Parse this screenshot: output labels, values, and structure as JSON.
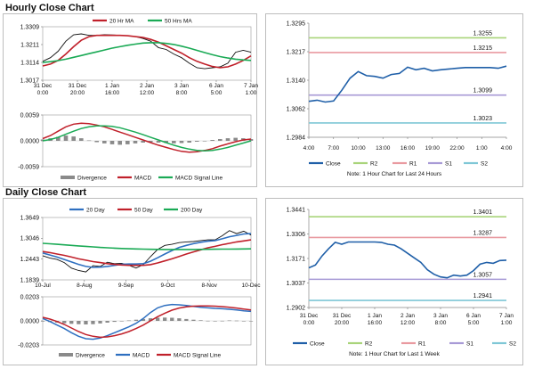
{
  "hourly": {
    "title": "Hourly Close Chart",
    "note": "Note: 1 Hour Chart for Last 24 Hours"
  },
  "daily": {
    "title": "Daily Close Chart",
    "note": "Note: 1 Hour Chart for Last 1 Week"
  },
  "colors": {
    "close": "#1f5fa8",
    "ma_red": "#c0202a",
    "ma_green": "#1aaa55",
    "ma_blue": "#2e6fc0",
    "r2": "#a9d47a",
    "r1": "#e99aa0",
    "s1": "#a89ad6",
    "s2": "#7fc7d6",
    "divergence": "#8a8a8a",
    "price": "#111111"
  },
  "chart_data": [
    {
      "id": "hourly_price",
      "type": "line",
      "legend": [
        "20 Hr MA",
        "50 Hrs MA"
      ],
      "yticks": [
        "1.3309",
        "1.3211",
        "1.3114",
        "1.3017"
      ],
      "ylim": [
        1.3017,
        1.3309
      ],
      "xticks": [
        "31 Dec\n0:00",
        "31 Dec\n20:00",
        "1 Jan\n16:00",
        "2 Jan\n12:00",
        "3 Jan\n8:00",
        "6 Jan\n5:00",
        "7 Jan\n1:00"
      ],
      "series": [
        {
          "name": "Close",
          "color_key": "price",
          "values": [
            1.312,
            1.314,
            1.3175,
            1.323,
            1.3265,
            1.327,
            1.3262,
            1.3262,
            1.3265,
            1.3264,
            1.3262,
            1.326,
            1.3255,
            1.3245,
            1.323,
            1.3195,
            1.3185,
            1.316,
            1.314,
            1.311,
            1.3085,
            1.308,
            1.3085,
            1.309,
            1.311,
            1.317,
            1.318,
            1.317
          ]
        },
        {
          "name": "20 Hr MA",
          "color_key": "ma_red",
          "values": [
            1.3095,
            1.3105,
            1.3125,
            1.316,
            1.32,
            1.3235,
            1.3255,
            1.3262,
            1.3262,
            1.3262,
            1.3262,
            1.326,
            1.3255,
            1.325,
            1.324,
            1.3225,
            1.3205,
            1.3185,
            1.3165,
            1.314,
            1.312,
            1.3105,
            1.3092,
            1.3085,
            1.309,
            1.3105,
            1.3125,
            1.315
          ]
        },
        {
          "name": "50 Hrs MA",
          "color_key": "ma_green",
          "values": [
            1.3114,
            1.3118,
            1.3124,
            1.3132,
            1.3142,
            1.3152,
            1.3162,
            1.3172,
            1.3182,
            1.3192,
            1.32,
            1.3208,
            1.3214,
            1.322,
            1.3222,
            1.3222,
            1.3218,
            1.3212,
            1.3203,
            1.3192,
            1.318,
            1.3168,
            1.3156,
            1.3146,
            1.3138,
            1.3132,
            1.3128,
            1.3125
          ]
        }
      ]
    },
    {
      "id": "hourly_macd",
      "type": "line",
      "legend": [
        "Divergence",
        "MACD",
        "MACD Signal Line"
      ],
      "yticks": [
        "0.0059",
        "0.0000",
        "-0.0059"
      ],
      "ylim": [
        -0.0059,
        0.0059
      ],
      "series": [
        {
          "name": "Divergence",
          "color_key": "divergence",
          "values": [
            0.0003,
            0.0006,
            0.0009,
            0.0012,
            0.001,
            0.0006,
            0.0001,
            -0.0003,
            -0.0006,
            -0.0008,
            -0.0009,
            -0.0008,
            -0.0006,
            -0.0004,
            -0.0003,
            -0.0004,
            -0.0005,
            -0.0006,
            -0.0005,
            -0.0004,
            -0.0002,
            0.0,
            0.0002,
            0.0004,
            0.0006,
            0.0007,
            0.0006,
            0.0004
          ]
        },
        {
          "name": "MACD",
          "color_key": "ma_red",
          "values": [
            0.0005,
            0.0012,
            0.0022,
            0.0032,
            0.0038,
            0.004,
            0.0039,
            0.0036,
            0.0032,
            0.0026,
            0.002,
            0.0014,
            0.0008,
            0.0002,
            -0.0004,
            -0.001,
            -0.0015,
            -0.002,
            -0.0024,
            -0.0026,
            -0.0025,
            -0.0022,
            -0.0018,
            -0.0012,
            -0.0007,
            -0.0002,
            0.0002,
            0.0004
          ]
        },
        {
          "name": "MACD Signal Line",
          "color_key": "ma_green",
          "values": [
            0.0,
            0.0003,
            0.0008,
            0.0015,
            0.0022,
            0.0028,
            0.0032,
            0.0034,
            0.0034,
            0.0033,
            0.003,
            0.0025,
            0.002,
            0.0014,
            0.0008,
            0.0002,
            -0.0004,
            -0.001,
            -0.0015,
            -0.0019,
            -0.0022,
            -0.0023,
            -0.0022,
            -0.0019,
            -0.0015,
            -0.001,
            -0.0005,
            0.0
          ]
        }
      ]
    },
    {
      "id": "hourly_24h",
      "type": "line",
      "legend": [
        "Close",
        "R2",
        "R1",
        "S1",
        "S2"
      ],
      "yticks": [
        "1.3295",
        "1.3217",
        "1.3140",
        "1.3062",
        "1.2984"
      ],
      "ylim": [
        1.2984,
        1.3295
      ],
      "xticks": [
        "4:00",
        "7:00",
        "10:00",
        "13:00",
        "16:00",
        "19:00",
        "22:00",
        "1:00",
        "4:00"
      ],
      "levels": [
        {
          "name": "R2",
          "value": 1.3255,
          "label": "1.3255",
          "color_key": "r2"
        },
        {
          "name": "R1",
          "value": 1.3215,
          "label": "1.3215",
          "color_key": "r1"
        },
        {
          "name": "S1",
          "value": 1.3099,
          "label": "1.3099",
          "color_key": "s1"
        },
        {
          "name": "S2",
          "value": 1.3023,
          "label": "1.3023",
          "color_key": "s2"
        }
      ],
      "series": [
        {
          "name": "Close",
          "color_key": "close",
          "values": [
            1.3082,
            1.3085,
            1.308,
            1.3083,
            1.3112,
            1.3145,
            1.3163,
            1.3152,
            1.315,
            1.3145,
            1.3155,
            1.3158,
            1.3175,
            1.3168,
            1.3172,
            1.3165,
            1.3168,
            1.317,
            1.3172,
            1.3174,
            1.3174,
            1.3174,
            1.3174,
            1.3172,
            1.3178
          ]
        }
      ]
    },
    {
      "id": "daily_price",
      "type": "line",
      "legend": [
        "20 Day",
        "50 Day",
        "200 Day"
      ],
      "yticks": [
        "1.3649",
        "1.3046",
        "1.2443",
        "1.1839"
      ],
      "ylim": [
        1.1839,
        1.3649
      ],
      "xticks": [
        "10-Jul",
        "8-Aug",
        "9-Sep",
        "9-Oct",
        "8-Nov",
        "10-Dec"
      ],
      "series": [
        {
          "name": "Close",
          "color_key": "price",
          "values": [
            1.254,
            1.247,
            1.243,
            1.234,
            1.218,
            1.211,
            1.207,
            1.225,
            1.223,
            1.235,
            1.231,
            1.232,
            1.226,
            1.218,
            1.228,
            1.251,
            1.272,
            1.284,
            1.287,
            1.292,
            1.294,
            1.295,
            1.298,
            1.3,
            1.3,
            1.312,
            1.327,
            1.318,
            1.325,
            1.314
          ]
        },
        {
          "name": "20 Day",
          "color_key": "ma_blue",
          "values": [
            1.262,
            1.256,
            1.25,
            1.243,
            1.236,
            1.229,
            1.223,
            1.22,
            1.221,
            1.223,
            1.226,
            1.229,
            1.23,
            1.23,
            1.231,
            1.238,
            1.248,
            1.259,
            1.269,
            1.278,
            1.284,
            1.289,
            1.293,
            1.296,
            1.298,
            1.303,
            1.309,
            1.313,
            1.317,
            1.318
          ]
        },
        {
          "name": "50 Day",
          "color_key": "ma_red",
          "values": [
            1.266,
            1.263,
            1.259,
            1.255,
            1.25,
            1.245,
            1.241,
            1.237,
            1.234,
            1.231,
            1.229,
            1.227,
            1.226,
            1.226,
            1.226,
            1.228,
            1.233,
            1.239,
            1.245,
            1.252,
            1.259,
            1.265,
            1.271,
            1.277,
            1.281,
            1.286,
            1.29,
            1.294,
            1.297,
            1.3
          ]
        },
        {
          "name": "200 Day",
          "color_key": "ma_green",
          "values": [
            1.29,
            1.2885,
            1.287,
            1.2855,
            1.284,
            1.2825,
            1.281,
            1.2795,
            1.278,
            1.277,
            1.276,
            1.275,
            1.2742,
            1.2735,
            1.273,
            1.2726,
            1.2724,
            1.2722,
            1.272,
            1.272,
            1.272,
            1.2722,
            1.2724,
            1.2726,
            1.2728,
            1.273,
            1.2732,
            1.2734,
            1.2736,
            1.2738
          ]
        }
      ]
    },
    {
      "id": "daily_macd",
      "type": "line",
      "legend": [
        "Divergence",
        "MACD",
        "MACD Signal Line"
      ],
      "yticks": [
        "0.0203",
        "0.0000",
        "-0.0203"
      ],
      "ylim": [
        -0.0203,
        0.0203
      ],
      "series": [
        {
          "name": "Divergence",
          "color_key": "divergence",
          "values": [
            -0.0005,
            -0.001,
            -0.0015,
            -0.002,
            -0.0025,
            -0.0028,
            -0.003,
            -0.0028,
            -0.0022,
            -0.0015,
            -0.0008,
            -0.0002,
            0.0004,
            0.001,
            0.0016,
            0.0022,
            0.0026,
            0.0028,
            0.0026,
            0.0022,
            0.0016,
            0.001,
            0.0005,
            0.0001,
            -0.0002,
            0.0001,
            0.0004,
            0.0002,
            -0.0001,
            -0.0003
          ]
        },
        {
          "name": "MACD",
          "color_key": "ma_blue",
          "values": [
            0.002,
            -0.0005,
            -0.0035,
            -0.0065,
            -0.01,
            -0.013,
            -0.015,
            -0.0155,
            -0.0145,
            -0.0125,
            -0.01,
            -0.0075,
            -0.005,
            -0.002,
            0.002,
            0.007,
            0.011,
            0.013,
            0.0138,
            0.0135,
            0.013,
            0.0122,
            0.0115,
            0.011,
            0.0105,
            0.0102,
            0.0098,
            0.0092,
            0.0085,
            0.008
          ]
        },
        {
          "name": "MACD Signal Line",
          "color_key": "ma_red",
          "values": [
            0.003,
            0.0015,
            -0.0005,
            -0.003,
            -0.006,
            -0.009,
            -0.0115,
            -0.013,
            -0.0138,
            -0.0135,
            -0.0125,
            -0.011,
            -0.009,
            -0.0065,
            -0.0035,
            0.0,
            0.0035,
            0.0065,
            0.009,
            0.0108,
            0.0118,
            0.0124,
            0.0126,
            0.0126,
            0.0124,
            0.012,
            0.0115,
            0.0108,
            0.01,
            0.0092
          ]
        }
      ]
    },
    {
      "id": "daily_week",
      "type": "line",
      "legend": [
        "Close",
        "R2",
        "R1",
        "S1",
        "S2"
      ],
      "yticks": [
        "1.3441",
        "1.3306",
        "1.3171",
        "1.3037",
        "1.2902"
      ],
      "ylim": [
        1.2902,
        1.3441
      ],
      "xticks": [
        "31 Dec\n0:00",
        "31 Dec\n20:00",
        "1 Jan\n16:00",
        "2 Jan\n12:00",
        "3 Jan\n8:00",
        "6 Jan\n5:00",
        "7 Jan\n1:00"
      ],
      "levels": [
        {
          "name": "R2",
          "value": 1.3401,
          "label": "1.3401",
          "color_key": "r2"
        },
        {
          "name": "R1",
          "value": 1.3287,
          "label": "1.3287",
          "color_key": "r1"
        },
        {
          "name": "S1",
          "value": 1.3057,
          "label": "1.3057",
          "color_key": "s1"
        },
        {
          "name": "S2",
          "value": 1.2941,
          "label": "1.2941",
          "color_key": "s2"
        }
      ],
      "series": [
        {
          "name": "Close",
          "color_key": "close",
          "values": [
            1.312,
            1.3135,
            1.3185,
            1.3225,
            1.326,
            1.325,
            1.3262,
            1.3262,
            1.3262,
            1.3262,
            1.3262,
            1.326,
            1.325,
            1.3245,
            1.3225,
            1.32,
            1.3175,
            1.315,
            1.311,
            1.3085,
            1.307,
            1.3065,
            1.308,
            1.3075,
            1.308,
            1.3105,
            1.314,
            1.315,
            1.3145,
            1.316,
            1.3162
          ]
        }
      ]
    }
  ]
}
